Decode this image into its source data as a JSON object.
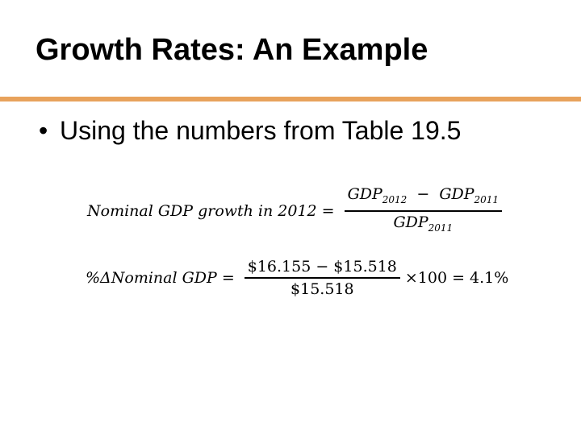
{
  "slide": {
    "title": "Growth Rates: An Example",
    "accent_color": "#e8a25c",
    "bullet": {
      "marker": "•",
      "text": "Using the numbers from Table 19.5"
    }
  },
  "equation1": {
    "lhs": "Nominal GDP growth in 2012",
    "equals": "=",
    "numerator": {
      "term1": "GDP",
      "term1_sub": "2012",
      "minus": "−",
      "term2": "GDP",
      "term2_sub": "2011"
    },
    "denominator": {
      "term": "GDP",
      "term_sub": "2011"
    }
  },
  "equation2": {
    "lhs": "%ΔNominal GDP",
    "equals": "=",
    "numerator": "$16.155 − $15.518",
    "denominator": "$15.518",
    "times": "×100",
    "equals2": "=",
    "result": "4.1%"
  }
}
